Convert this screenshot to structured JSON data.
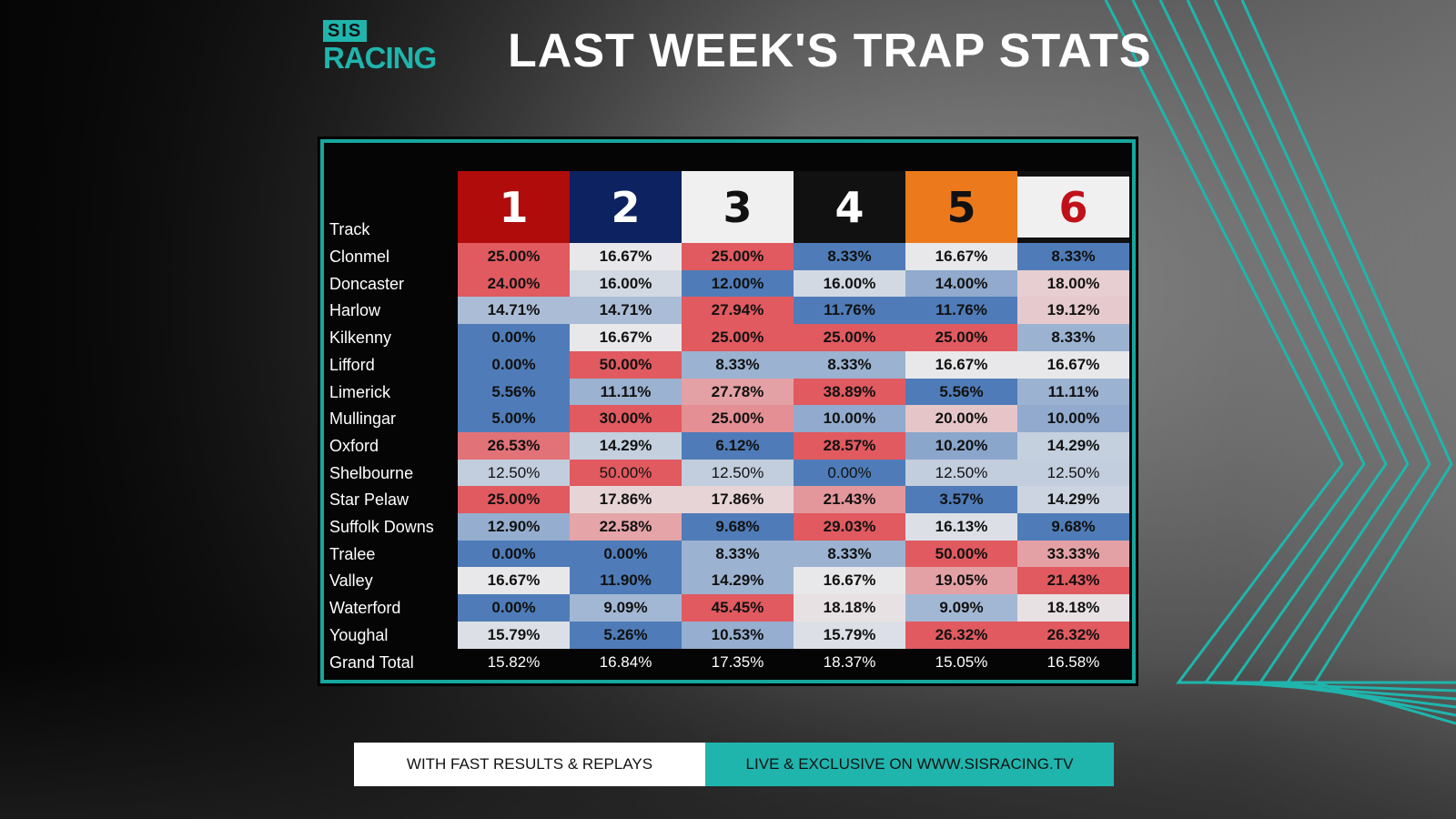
{
  "brand": {
    "sis": "SIS",
    "racing": "RACING"
  },
  "title": "LAST WEEK'S TRAP STATS",
  "colors": {
    "teal": "#1fb5ad",
    "red": "#e05a60",
    "blue": "#4f7cb8",
    "neutral": "#e8e8ea"
  },
  "table": {
    "track_header": "Track",
    "traps": [
      {
        "label": "1",
        "bg": "#b00c0c",
        "fg": "#ffffff"
      },
      {
        "label": "2",
        "bg": "#0d2260",
        "fg": "#ffffff"
      },
      {
        "label": "3",
        "bg": "#f0f0f0",
        "fg": "#111111"
      },
      {
        "label": "4",
        "bg": "#111111",
        "fg": "#ffffff"
      },
      {
        "label": "5",
        "bg": "#ec7a1c",
        "fg": "#111111"
      },
      {
        "label": "6",
        "bg": "#f0f0f0",
        "fg": "#c0111a"
      }
    ],
    "rows": [
      {
        "track": "Clonmel",
        "values": [
          "25.00%",
          "16.67%",
          "25.00%",
          "8.33%",
          "16.67%",
          "8.33%"
        ]
      },
      {
        "track": "Doncaster",
        "values": [
          "24.00%",
          "16.00%",
          "12.00%",
          "16.00%",
          "14.00%",
          "18.00%"
        ]
      },
      {
        "track": "Harlow",
        "values": [
          "14.71%",
          "14.71%",
          "27.94%",
          "11.76%",
          "11.76%",
          "19.12%"
        ]
      },
      {
        "track": "Kilkenny",
        "values": [
          "0.00%",
          "16.67%",
          "25.00%",
          "25.00%",
          "25.00%",
          "8.33%"
        ]
      },
      {
        "track": "Lifford",
        "values": [
          "0.00%",
          "50.00%",
          "8.33%",
          "8.33%",
          "16.67%",
          "16.67%"
        ]
      },
      {
        "track": "Limerick",
        "values": [
          "5.56%",
          "11.11%",
          "27.78%",
          "38.89%",
          "5.56%",
          "11.11%"
        ]
      },
      {
        "track": "Mullingar",
        "values": [
          "5.00%",
          "30.00%",
          "25.00%",
          "10.00%",
          "20.00%",
          "10.00%"
        ]
      },
      {
        "track": "Oxford",
        "values": [
          "26.53%",
          "14.29%",
          "6.12%",
          "28.57%",
          "10.20%",
          "14.29%"
        ]
      },
      {
        "track": "Shelbourne",
        "values": [
          "12.50%",
          "50.00%",
          "12.50%",
          "0.00%",
          "12.50%",
          "12.50%"
        ],
        "emphasis": false
      },
      {
        "track": "Star Pelaw",
        "values": [
          "25.00%",
          "17.86%",
          "17.86%",
          "21.43%",
          "3.57%",
          "14.29%"
        ]
      },
      {
        "track": "Suffolk Downs",
        "values": [
          "12.90%",
          "22.58%",
          "9.68%",
          "29.03%",
          "16.13%",
          "9.68%"
        ]
      },
      {
        "track": "Tralee",
        "values": [
          "0.00%",
          "0.00%",
          "8.33%",
          "8.33%",
          "50.00%",
          "33.33%"
        ]
      },
      {
        "track": "Valley",
        "values": [
          "16.67%",
          "11.90%",
          "14.29%",
          "16.67%",
          "19.05%",
          "21.43%"
        ]
      },
      {
        "track": "Waterford",
        "values": [
          "0.00%",
          "9.09%",
          "45.45%",
          "18.18%",
          "9.09%",
          "18.18%"
        ]
      },
      {
        "track": "Youghal",
        "values": [
          "15.79%",
          "5.26%",
          "10.53%",
          "15.79%",
          "26.32%",
          "26.32%"
        ]
      }
    ],
    "total": {
      "track": "Grand Total",
      "values": [
        "15.82%",
        "16.84%",
        "17.35%",
        "18.37%",
        "15.05%",
        "16.58%"
      ]
    }
  },
  "footer": {
    "left": "WITH FAST RESULTS & REPLAYS",
    "right": "LIVE & EXCLUSIVE ON WWW.SISRACING.TV"
  }
}
